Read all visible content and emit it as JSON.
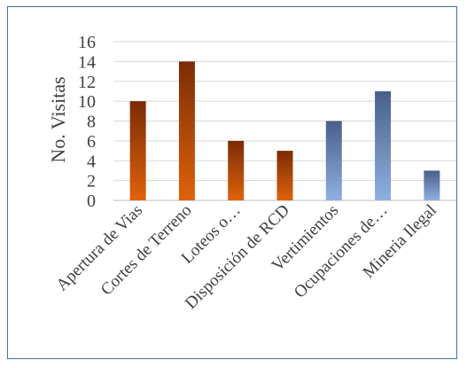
{
  "chart_data": {
    "type": "bar",
    "title": "",
    "xlabel": "",
    "ylabel": "No. Visitas",
    "ylim": [
      0,
      16
    ],
    "yticks": [
      0,
      2,
      4,
      6,
      8,
      10,
      12,
      14,
      16
    ],
    "grid": true,
    "legend": "none",
    "categories": [
      "Apertura de Vias",
      "Cortes de Terreno",
      "Loteos o…",
      "Disposición de RCD",
      "Vertimientos",
      "Ocupaciones de…",
      "Mineria Ilegal"
    ],
    "values": [
      10,
      14,
      6,
      5,
      8,
      11,
      3
    ],
    "bar_colors": [
      {
        "top": "#7a2c06",
        "bottom": "#e0620a"
      },
      {
        "top": "#7a2c06",
        "bottom": "#e0620a"
      },
      {
        "top": "#7a2c06",
        "bottom": "#e0620a"
      },
      {
        "top": "#7a2c06",
        "bottom": "#e0620a"
      },
      {
        "top": "#4a5f8a",
        "bottom": "#8eb0e0"
      },
      {
        "top": "#4a5f8a",
        "bottom": "#8eb0e0"
      },
      {
        "top": "#4a5f8a",
        "bottom": "#8eb0e0"
      }
    ]
  }
}
